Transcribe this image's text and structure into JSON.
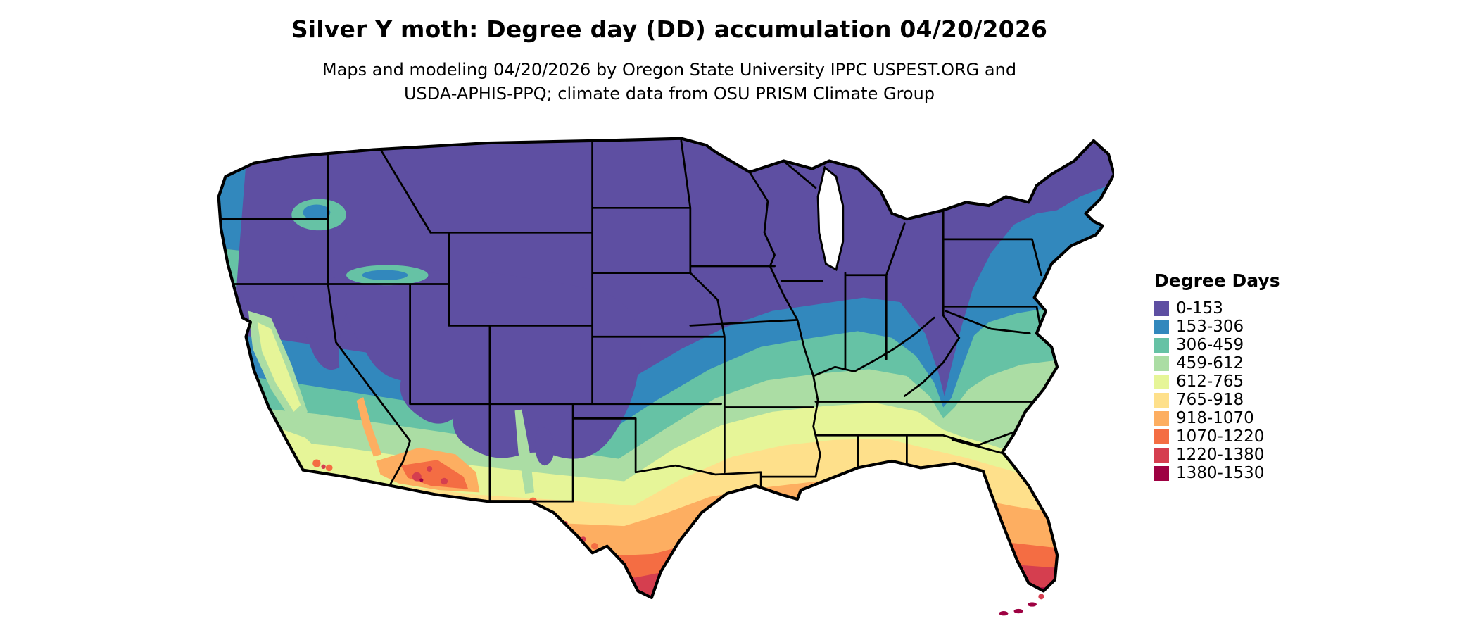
{
  "header": {
    "title": "Silver Y moth: Degree day (DD) accumulation 04/20/2026",
    "subtitle_line1": "Maps and modeling 04/20/2026 by Oregon State University IPPC USPEST.ORG and",
    "subtitle_line2": "USDA-APHIS-PPQ; climate data from OSU PRISM Climate Group"
  },
  "legend": {
    "title": "Degree Days",
    "entries": [
      {
        "label": "0-153",
        "color": "#5e4fa2"
      },
      {
        "label": "153-306",
        "color": "#3288bd"
      },
      {
        "label": "306-459",
        "color": "#66c2a5"
      },
      {
        "label": "459-612",
        "color": "#abdda4"
      },
      {
        "label": "612-765",
        "color": "#e6f598"
      },
      {
        "label": "765-918",
        "color": "#fee08b"
      },
      {
        "label": "918-1070",
        "color": "#fdae61"
      },
      {
        "label": "1070-1220",
        "color": "#f46d43"
      },
      {
        "label": "1220-1380",
        "color": "#d53e4f"
      },
      {
        "label": "1380-1530",
        "color": "#9e0142"
      }
    ]
  }
}
